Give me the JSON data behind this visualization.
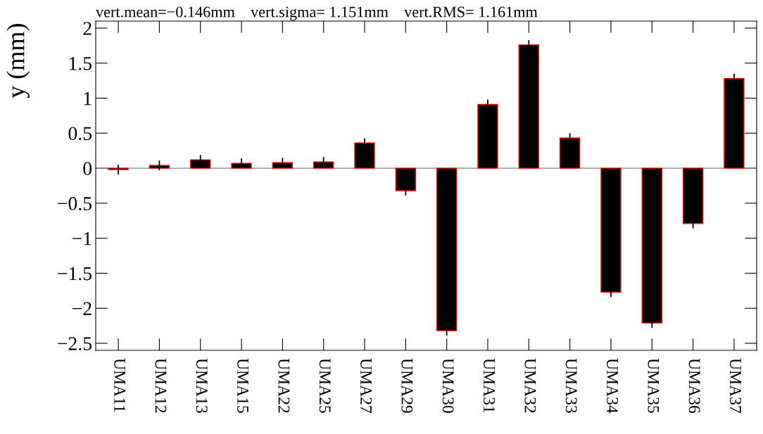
{
  "chart_data": {
    "type": "bar",
    "ylabel": "y (mm)",
    "annotations": [
      "vert.mean=−0.146mm    vert.sigma= 1.151mm    vert.RMS= 1.161mm"
    ],
    "categories": [
      "UMA11",
      "UMA12",
      "UMA13",
      "UMA15",
      "UMA22",
      "UMA25",
      "UMA27",
      "UMA29",
      "UMA30",
      "UMA31",
      "UMA32",
      "UMA33",
      "UMA34",
      "UMA35",
      "UMA36",
      "UMA37"
    ],
    "series": [
      {
        "color": "#000000",
        "values": [
          -0.02,
          0.04,
          0.12,
          0.07,
          0.08,
          0.09,
          0.36,
          -0.32,
          -2.32,
          0.91,
          1.76,
          0.43,
          -1.77,
          -2.21,
          -0.79,
          1.28
        ],
        "errors": [
          0.06,
          0.06,
          0.06,
          0.06,
          0.06,
          0.06,
          0.06,
          0.06,
          0.06,
          0.06,
          0.06,
          0.06,
          0.06,
          0.06,
          0.06,
          0.06
        ]
      }
    ],
    "ylim": [
      -2.6,
      2.1
    ],
    "yticks": [
      -2.5,
      -2,
      -1.5,
      -1,
      -0.5,
      0,
      0.5,
      1,
      1.5,
      2
    ],
    "ref_lines": [
      {
        "axis": "y",
        "value": 0,
        "color": "#808080"
      }
    ],
    "grid": false,
    "legend": false
  }
}
